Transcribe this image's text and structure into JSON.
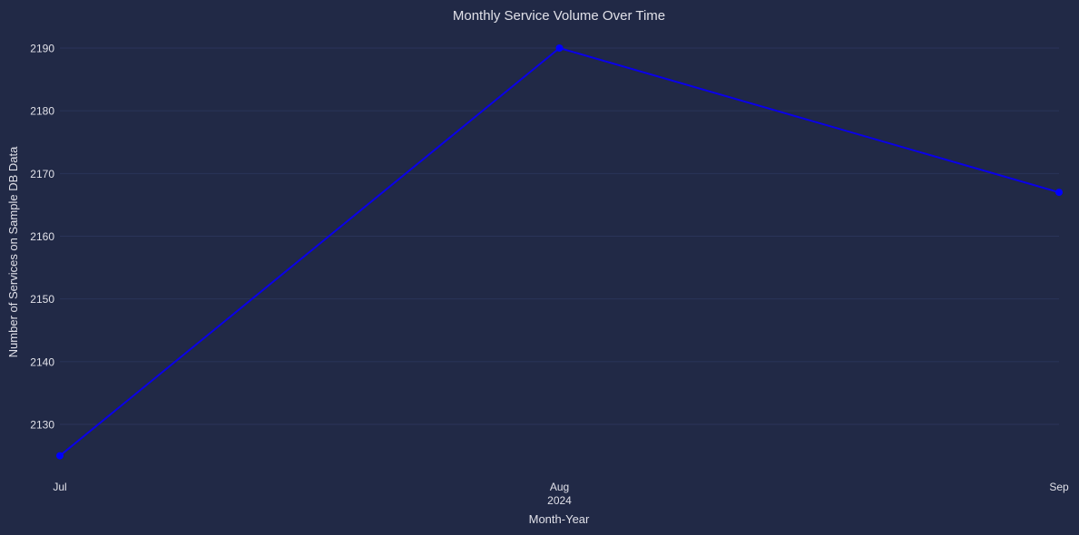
{
  "chart_data": {
    "type": "line",
    "title": "Monthly Service Volume Over Time",
    "xlabel": "Month-Year",
    "ylabel": "Number of Services on Sample DB Data",
    "x": [
      "2024-07",
      "2024-08",
      "2024-09"
    ],
    "x_tick_labels": [
      "Jul",
      "Aug",
      "Sep"
    ],
    "x_tick_sublabels": [
      "",
      "2024",
      ""
    ],
    "series": [
      {
        "values": [
          2125,
          2190,
          2167
        ]
      }
    ],
    "ylim": [
      2123,
      2192
    ],
    "y_ticks": [
      2130,
      2140,
      2150,
      2160,
      2170,
      2180,
      2190
    ],
    "grid": true,
    "legend": "none"
  },
  "colors": {
    "background": "#212946",
    "grid": "#2a3459",
    "text": "#e0e0e8",
    "line": "#0a00e8",
    "marker": "#0000ff"
  }
}
